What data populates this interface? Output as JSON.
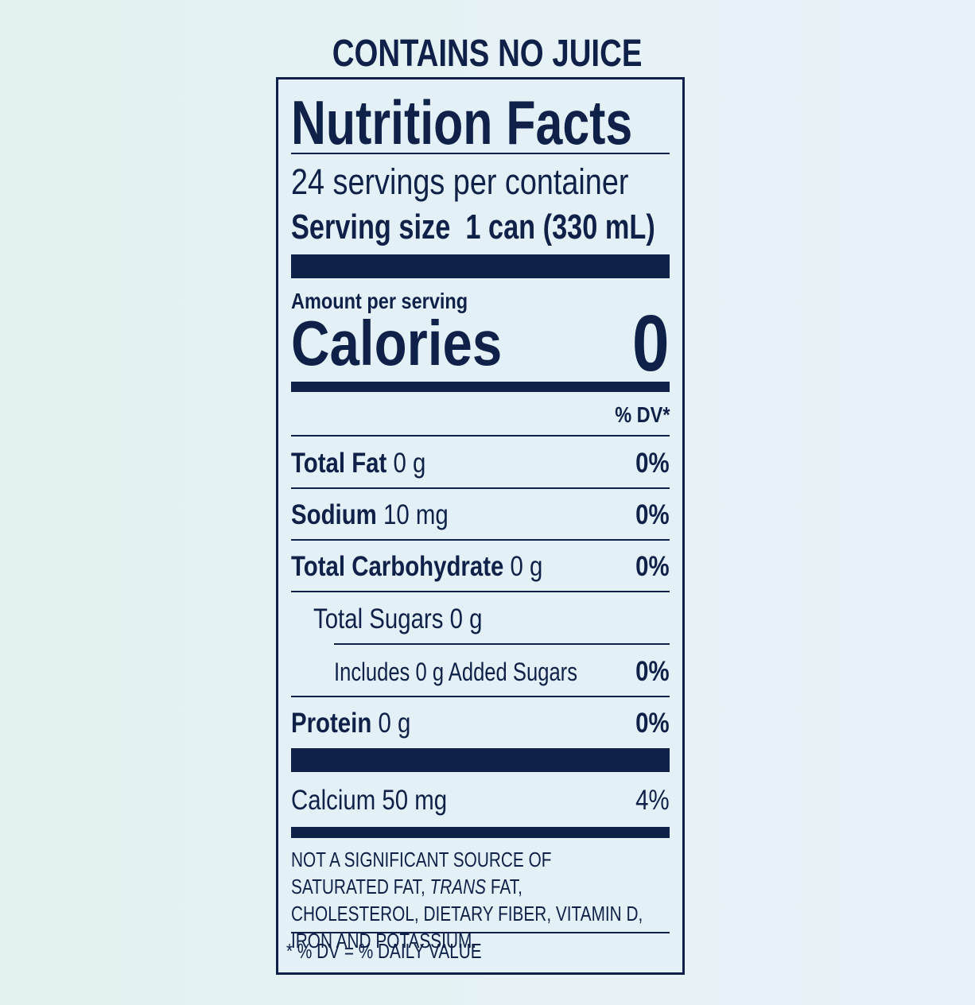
{
  "header": "CONTAINS NO JUICE",
  "title": "Nutrition Facts",
  "servings": "24 servings per container",
  "serving_size_label": "Serving size",
  "serving_size": "1 can (330 mL)",
  "amount_label": "Amount per serving",
  "calories_label": "Calories",
  "calories": "0",
  "dv_header": "% DV*",
  "nutrients": [
    {
      "name": "Total Fat",
      "amount": "0 g",
      "dv": "0%"
    },
    {
      "name": "Sodium",
      "amount": "10 mg",
      "dv": "0%"
    },
    {
      "name": "Total Carbohydrate",
      "amount": "0 g",
      "dv": "0%"
    },
    {
      "name": "Total Sugars",
      "amount": "0 g"
    },
    {
      "name": "Includes 0 g Added Sugars",
      "dv": "0%"
    },
    {
      "name": "Protein",
      "amount": "0 g",
      "dv": "0%"
    },
    {
      "name": "Calcium",
      "amount": "50 mg",
      "dv": "4%"
    }
  ],
  "footnote": {
    "before": "NOT A SIGNIFICANT SOURCE OF SATURATED FAT,",
    "italic": "TRANS",
    "after": "FAT, CHOLESTEROL, DIETARY FIBER, VITAMIN D, IRON AND POTASSIUM."
  },
  "dv_note": "* % DV = % DAILY VALUE"
}
